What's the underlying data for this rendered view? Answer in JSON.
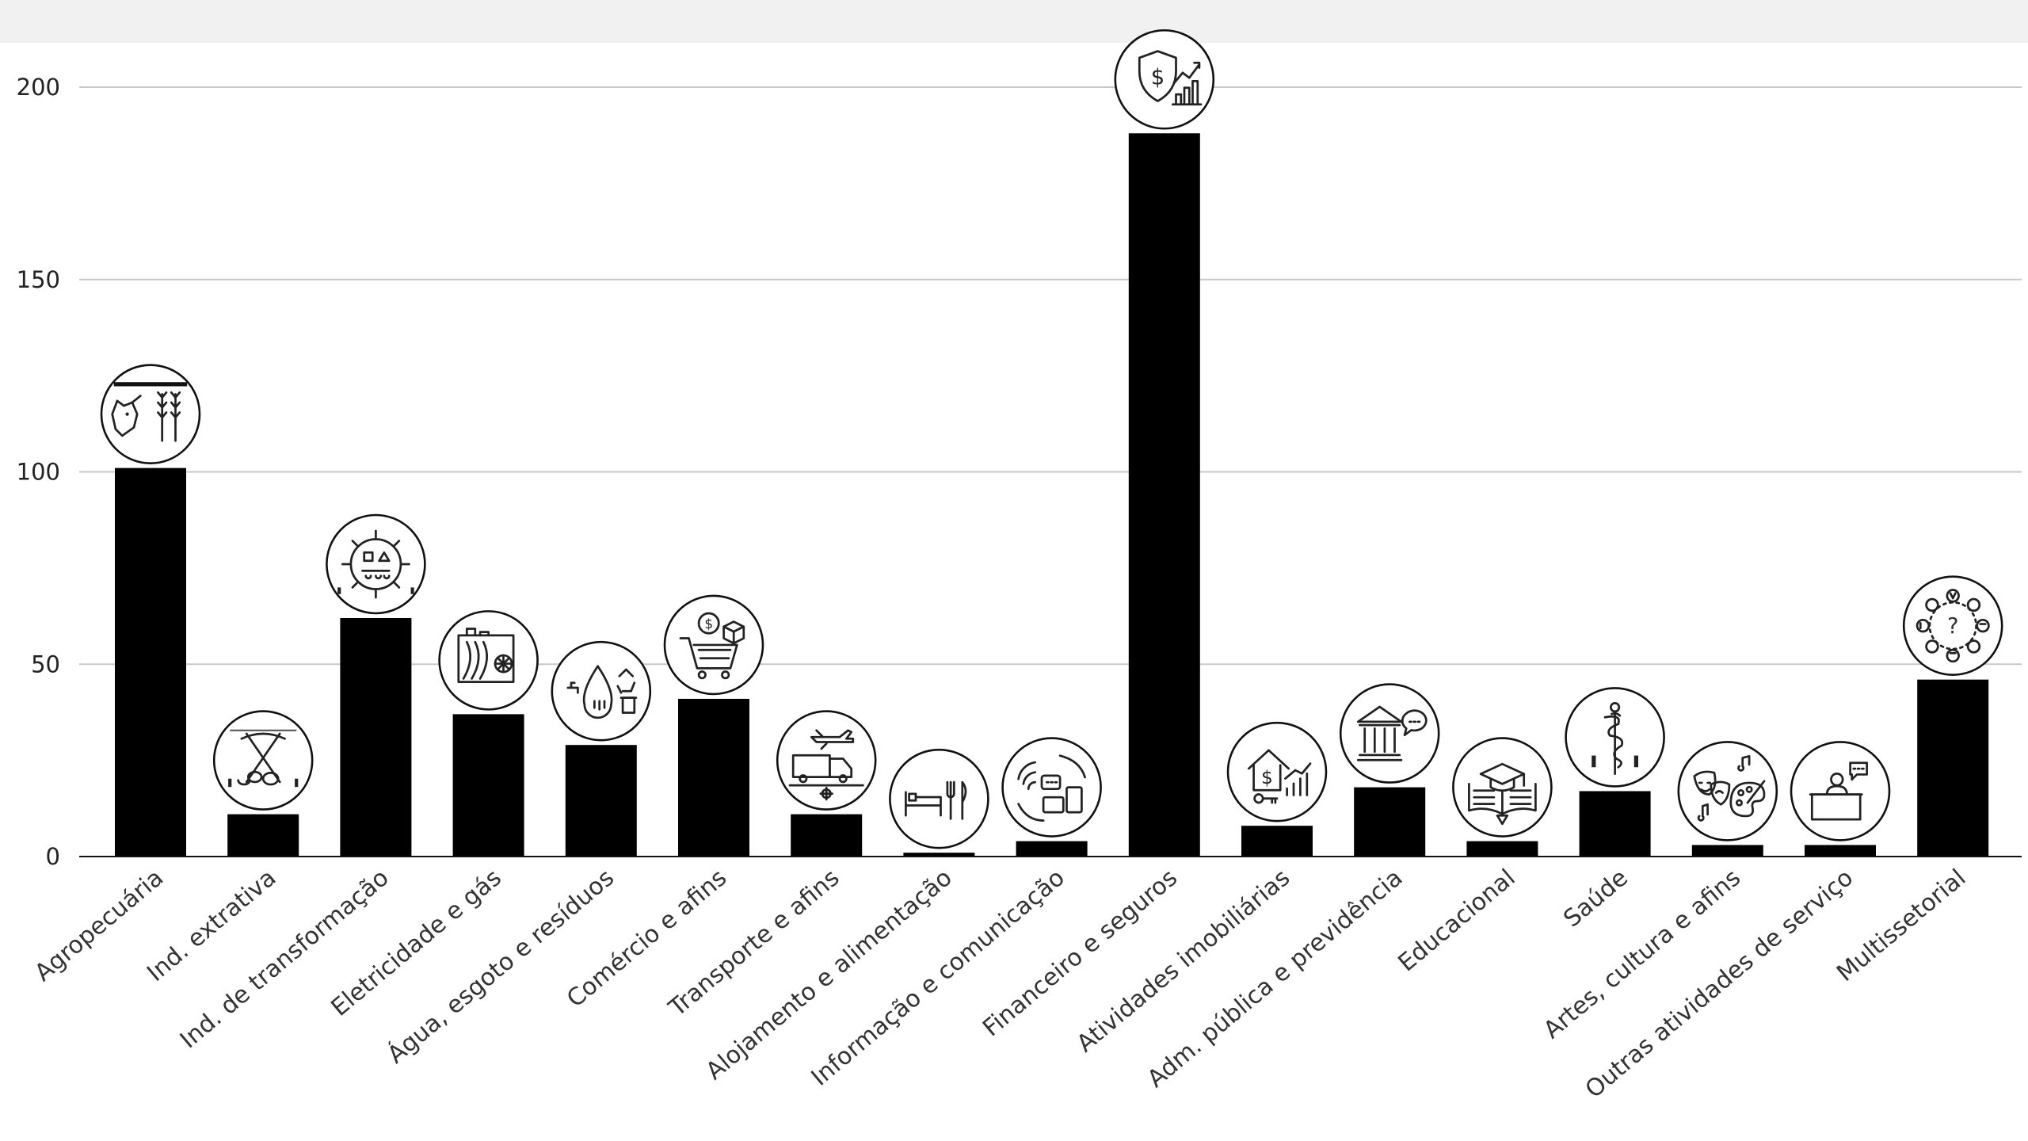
{
  "chart_data": {
    "type": "bar",
    "categories": [
      "Agropecuária",
      "Ind. extrativa",
      "Ind. de transformação",
      "Eletricidade e gás",
      "Água, esgoto e resíduos",
      "Comércio e afins",
      "Transporte e afins",
      "Alojamento e alimentação",
      "Informação e comunicação",
      "Financeiro e seguros",
      "Atividades imobiliárias",
      "Adm. pública e previdência",
      "Educacional",
      "Saúde",
      "Artes, cultura e afins",
      "Outras atividades de serviço",
      "Multissetorial"
    ],
    "values": [
      101,
      11,
      62,
      37,
      29,
      41,
      11,
      1,
      4,
      188,
      8,
      18,
      4,
      17,
      3,
      3,
      46
    ],
    "icons": [
      "cow-wheat-icon",
      "pickaxe-icon",
      "gear-machine-icon",
      "power-plant-icon",
      "water-drop-recycle-icon",
      "shopping-cart-icon",
      "plane-truck-icon",
      "bed-cutlery-icon",
      "wifi-phone-icon",
      "shield-dollar-chart-icon",
      "house-dollar-icon",
      "government-building-icon",
      "graduation-book-icon",
      "caduceus-icon",
      "theater-masks-palette-icon",
      "service-desk-icon",
      "multisector-question-icon"
    ],
    "yticks": [
      0,
      50,
      100,
      150,
      200
    ],
    "ylim": [
      0,
      200
    ],
    "grid": true,
    "bar_color": "#000000",
    "grid_color": "#c8c8c8",
    "title": "",
    "xlabel": "",
    "ylabel": ""
  }
}
